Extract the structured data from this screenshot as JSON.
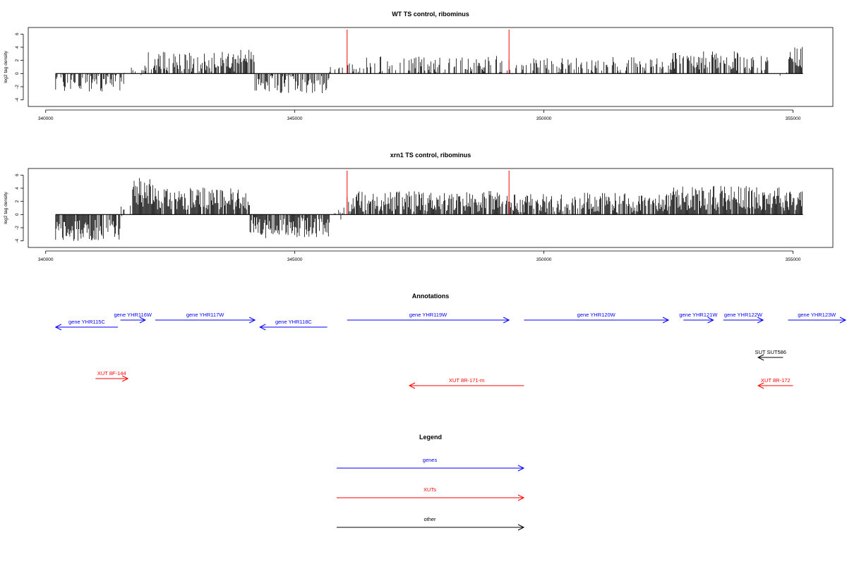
{
  "colors": {
    "gene": "#0000ff",
    "xut": "#ff0000",
    "other": "#000000",
    "marker": "#ff0000",
    "bar": "#000000"
  },
  "chart_data": [
    {
      "type": "bar",
      "title": "WT TS control, ribominus",
      "ylabel": "log2 tag density",
      "xlim": [
        339650,
        355800
      ],
      "ylim": [
        -5,
        7
      ],
      "x_ticks": [
        "340000",
        "345000",
        "350000",
        "355000"
      ],
      "y_ticks": [
        "-4",
        "-2",
        "0",
        "2",
        "4",
        "6"
      ],
      "marker_lines_x": [
        346050,
        349300
      ],
      "track_range": [
        340200,
        355200
      ],
      "segments": [
        {
          "from": 340200,
          "to": 341600,
          "mean": -1.4,
          "amp": 1.5,
          "density": 0.55
        },
        {
          "from": 341600,
          "to": 342000,
          "mean": 0.4,
          "amp": 1.0,
          "density": 0.3
        },
        {
          "from": 342000,
          "to": 343900,
          "mean": 1.8,
          "amp": 1.5,
          "density": 0.7
        },
        {
          "from": 343900,
          "to": 344200,
          "mean": 2.6,
          "amp": 1.4,
          "density": 0.9
        },
        {
          "from": 344200,
          "to": 345700,
          "mean": -1.6,
          "amp": 1.4,
          "density": 0.55
        },
        {
          "from": 345700,
          "to": 346050,
          "mean": 0.2,
          "amp": 1.0,
          "density": 0.2
        },
        {
          "from": 346050,
          "to": 349300,
          "mean": 1.3,
          "amp": 1.4,
          "density": 0.5
        },
        {
          "from": 349300,
          "to": 352500,
          "mean": 1.2,
          "amp": 1.3,
          "density": 0.45
        },
        {
          "from": 352500,
          "to": 354000,
          "mean": 2.0,
          "amp": 1.6,
          "density": 0.6
        },
        {
          "from": 354000,
          "to": 354500,
          "mean": 1.5,
          "amp": 1.2,
          "density": 0.5
        },
        {
          "from": 354500,
          "to": 354900,
          "mean": 0.2,
          "amp": 0.6,
          "density": 0.15
        },
        {
          "from": 354900,
          "to": 355200,
          "mean": 2.4,
          "amp": 1.7,
          "density": 0.8
        }
      ]
    },
    {
      "type": "bar",
      "title": "xrn1 TS control, ribominus",
      "ylabel": "log2 tag density",
      "xlim": [
        339650,
        355800
      ],
      "ylim": [
        -5,
        7
      ],
      "x_ticks": [
        "340000",
        "345000",
        "350000",
        "355000"
      ],
      "y_ticks": [
        "-4",
        "-2",
        "0",
        "2",
        "4",
        "6"
      ],
      "marker_lines_x": [
        346050,
        349300
      ],
      "track_range": [
        340200,
        355200
      ],
      "segments": [
        {
          "from": 340200,
          "to": 341500,
          "mean": -2.4,
          "amp": 1.6,
          "density": 0.85
        },
        {
          "from": 341500,
          "to": 341700,
          "mean": 0.3,
          "amp": 1.0,
          "density": 0.3
        },
        {
          "from": 341700,
          "to": 342200,
          "mean": 3.4,
          "amp": 2.2,
          "density": 0.95
        },
        {
          "from": 342200,
          "to": 344100,
          "mean": 2.4,
          "amp": 1.7,
          "density": 0.9
        },
        {
          "from": 344100,
          "to": 345700,
          "mean": -2.0,
          "amp": 1.6,
          "density": 0.8
        },
        {
          "from": 345700,
          "to": 346050,
          "mean": 0.2,
          "amp": 1.0,
          "density": 0.2
        },
        {
          "from": 346050,
          "to": 349300,
          "mean": 2.0,
          "amp": 1.6,
          "density": 0.85
        },
        {
          "from": 349300,
          "to": 352500,
          "mean": 1.8,
          "amp": 1.5,
          "density": 0.7
        },
        {
          "from": 352500,
          "to": 355200,
          "mean": 2.5,
          "amp": 1.9,
          "density": 0.9
        }
      ]
    }
  ],
  "annotations": {
    "title": "Annotations",
    "features": [
      {
        "label": "gene YHR115C",
        "type": "gene",
        "strand": "-",
        "start": 340200,
        "end": 341450,
        "row": 1
      },
      {
        "label": "gene YHR116W",
        "type": "gene",
        "strand": "+",
        "start": 341500,
        "end": 342000,
        "row": 0
      },
      {
        "label": "gene YHR117W",
        "type": "gene",
        "strand": "+",
        "start": 342200,
        "end": 344200,
        "row": 0
      },
      {
        "label": "gene YHR118C",
        "type": "gene",
        "strand": "-",
        "start": 344300,
        "end": 345650,
        "row": 1
      },
      {
        "label": "gene YHR119W",
        "type": "gene",
        "strand": "+",
        "start": 346050,
        "end": 349300,
        "row": 0
      },
      {
        "label": "gene YHR120W",
        "type": "gene",
        "strand": "+",
        "start": 349600,
        "end": 352500,
        "row": 0
      },
      {
        "label": "gene YHR121W",
        "type": "gene",
        "strand": "+",
        "start": 352800,
        "end": 353400,
        "row": 0
      },
      {
        "label": "gene YHR122W",
        "type": "gene",
        "strand": "+",
        "start": 353600,
        "end": 354400,
        "row": 0
      },
      {
        "label": "gene YHR123W",
        "type": "gene",
        "strand": "+",
        "start": 354900,
        "end": 356200,
        "row": 0
      },
      {
        "label": "SUT SUT586",
        "type": "other",
        "strand": "-",
        "start": 354300,
        "end": 354800,
        "row": 2
      },
      {
        "label": "XUT 8F-144",
        "type": "xut",
        "strand": "+",
        "start": 341000,
        "end": 341650,
        "row": 3
      },
      {
        "label": "XUT 8R-171-m",
        "type": "xut",
        "strand": "-",
        "start": 347300,
        "end": 349600,
        "row": 4
      },
      {
        "label": "XUT 8R-172",
        "type": "xut",
        "strand": "-",
        "start": 354300,
        "end": 355000,
        "row": 4
      }
    ]
  },
  "legend": {
    "title": "Legend",
    "items": [
      {
        "label": "genes",
        "type": "gene"
      },
      {
        "label": "XUTs",
        "type": "xut"
      },
      {
        "label": "other",
        "type": "other"
      }
    ]
  }
}
